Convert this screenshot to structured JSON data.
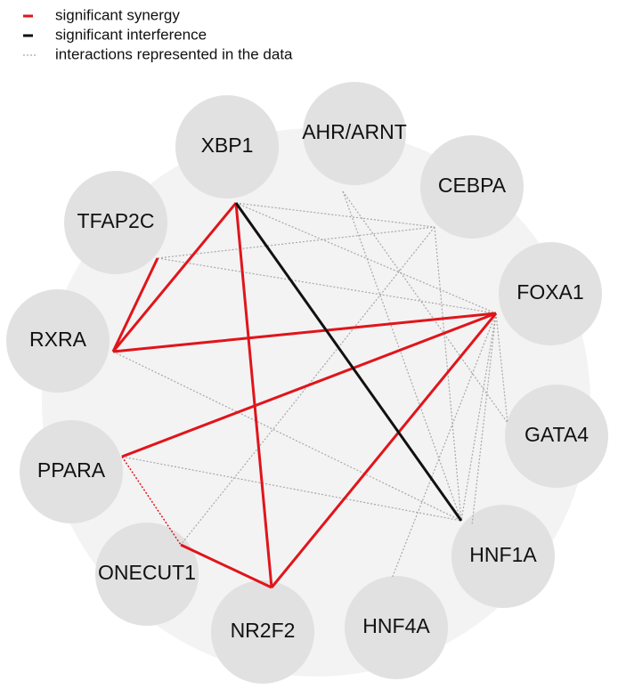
{
  "legend": [
    {
      "label": "significant synergy"
    },
    {
      "label": "significant interference"
    },
    {
      "label": "interactions represented in the data"
    }
  ],
  "nodes": [
    {
      "label": "XBP1"
    },
    {
      "label": "AHR/ARNT"
    },
    {
      "label": "CEBPA"
    },
    {
      "label": "TFAP2C"
    },
    {
      "label": "FOXA1"
    },
    {
      "label": "RXRA"
    },
    {
      "label": "GATA4"
    },
    {
      "label": "PPARA"
    },
    {
      "label": "HNF1A"
    },
    {
      "label": "ONECUT1"
    },
    {
      "label": "HNF4A"
    },
    {
      "label": "NR2F2"
    }
  ]
}
